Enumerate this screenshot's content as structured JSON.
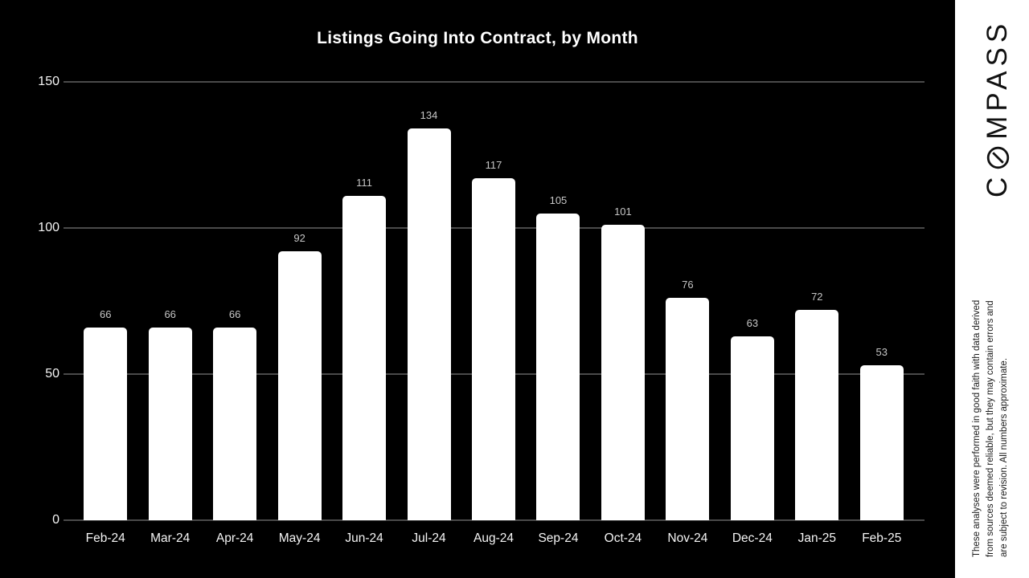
{
  "chart_data": {
    "type": "bar",
    "title": "Listings Going Into Contract, by Month",
    "categories": [
      "Feb-24",
      "Mar-24",
      "Apr-24",
      "May-24",
      "Jun-24",
      "Jul-24",
      "Aug-24",
      "Sep-24",
      "Oct-24",
      "Nov-24",
      "Dec-24",
      "Jan-25",
      "Feb-25"
    ],
    "values": [
      66,
      66,
      66,
      92,
      111,
      134,
      117,
      105,
      101,
      76,
      63,
      72,
      53
    ],
    "xlabel": "",
    "ylabel": "",
    "ylim": [
      0,
      150
    ],
    "yticks": [
      0,
      50,
      100,
      150
    ],
    "grid": true,
    "legend": false,
    "colors": {
      "background": "#000000",
      "bar": "#ffffff",
      "gridline": "#4a4a4a",
      "title": "#ffffff",
      "axis_tick_label": "#f5f5f5",
      "value_label": "#c6c6c6"
    }
  },
  "right_rail": {
    "background": "#ffffff",
    "logo": {
      "full_text": "COMPASS",
      "part1": "C",
      "part2": "MPASS",
      "color": "#111111"
    },
    "disclaimer": {
      "color": "#1a1a1a",
      "lines": [
        "These analyses were performed in good faith with data derived",
        "from sources deemed reliable, but they may contain errors and",
        "are subject to revision. All numbers approximate."
      ]
    }
  }
}
